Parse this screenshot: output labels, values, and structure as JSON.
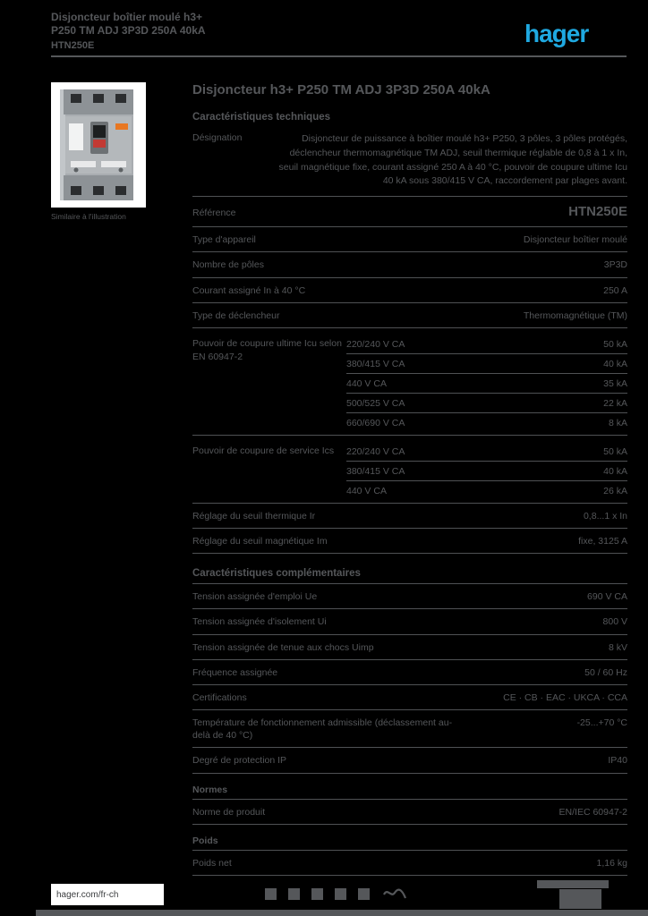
{
  "header": {
    "title_line1": "Disjoncteur boîtier moulé h3+",
    "title_line2": "P250 TM ADJ 3P3D 250A 40kA",
    "reference_line": "HTN250E",
    "logo_text": "hager"
  },
  "product": {
    "image_caption": "Similaire à l'illustration"
  },
  "main": {
    "title": "Disjoncteur h3+ P250 TM ADJ 3P3D 250A 40kA",
    "section1_heading": "Caractéristiques techniques",
    "description_label": "Désignation",
    "description_value": "Disjoncteur de puissance à boîtier moulé h3+ P250, 3 pôles, 3 pôles protégés, déclencheur thermomagnétique TM ADJ, seuil thermique réglable de 0,8 à 1 x In, seuil magnétique fixe, courant assigné 250 A à 40 °C, pouvoir de coupure ultime Icu 40 kA sous 380/415 V CA, raccordement par plages avant.",
    "reference_row": [
      {
        "label": "Référence",
        "value": "HTN250E"
      }
    ],
    "rows1": [
      {
        "label": "Type d'appareil",
        "value": "Disjoncteur boîtier moulé"
      },
      {
        "label": "Nombre de pôles",
        "value": "3P3D"
      },
      {
        "label": "Courant assigné In à 40 °C",
        "value": "250 A"
      },
      {
        "label": "Type de déclencheur",
        "value": "Thermomagnétique (TM)"
      }
    ],
    "icu_block": {
      "label": "Pouvoir de coupure ultime Icu selon EN 60947-2",
      "entries": [
        {
          "voltage": "220/240 V CA",
          "value": "50 kA"
        },
        {
          "voltage": "380/415 V CA",
          "value": "40 kA"
        },
        {
          "voltage": "440 V CA",
          "value": "35 kA"
        },
        {
          "voltage": "500/525 V CA",
          "value": "22 kA"
        },
        {
          "voltage": "660/690 V CA",
          "value": "8 kA"
        }
      ]
    },
    "ics_block": {
      "label": "Pouvoir de coupure de service Ics",
      "entries": [
        {
          "voltage": "220/240 V CA",
          "value": "50 kA"
        },
        {
          "voltage": "380/415 V CA",
          "value": "40 kA"
        },
        {
          "voltage": "440 V CA",
          "value": "26 kA"
        }
      ]
    },
    "rows2": [
      {
        "label": "Réglage du seuil thermique Ir",
        "value": "0,8...1 x In"
      },
      {
        "label": "Réglage du seuil magnétique Im",
        "value": "fixe, 3125 A"
      }
    ],
    "section2_heading": "Caractéristiques complémentaires",
    "rows3": [
      {
        "label": "Tension assignée d'emploi Ue",
        "value": "690 V CA"
      },
      {
        "label": "Tension assignée d'isolement Ui",
        "value": "800 V"
      },
      {
        "label": "Tension assignée de tenue aux chocs Uimp",
        "value": "8 kV"
      },
      {
        "label": "Fréquence assignée",
        "value": "50 / 60 Hz"
      },
      {
        "label": "Certifications",
        "value": "CE · CB · EAC · UKCA · CCA"
      },
      {
        "label": "Température de fonctionnement admissible (déclassement au-delà de 40 °C)",
        "value": "-25...+70 °C"
      },
      {
        "label": "Degré de protection IP",
        "value": "IP40"
      }
    ],
    "norms_heading": "Normes",
    "norms_rows": [
      {
        "label": "Norme de produit",
        "value": "EN/IEC 60947-2"
      }
    ],
    "weight_heading": "Poids",
    "weight_rows": [
      {
        "label": "Poids net",
        "value": "1,16 kg"
      }
    ]
  },
  "footer": {
    "website": "hager.com/fr-ch",
    "approval_icons": [
      "approval-mark-1",
      "approval-mark-2",
      "approval-mark-3",
      "approval-mark-4",
      "approval-mark-5"
    ]
  },
  "colors": {
    "accent_blue": "#1fa9e1",
    "text_gray": "#55575a",
    "background": "#000000"
  }
}
